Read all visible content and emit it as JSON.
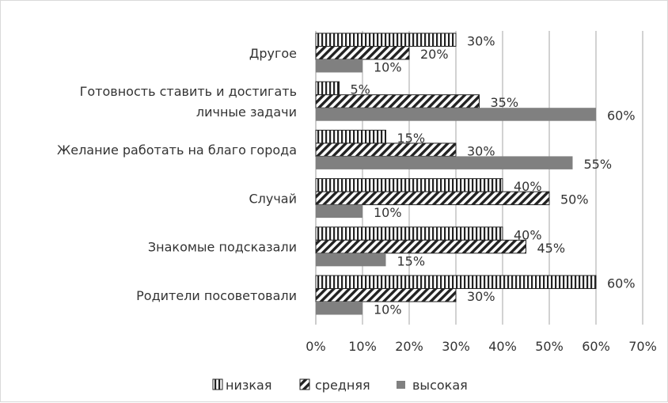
{
  "chart_data": {
    "type": "bar",
    "orientation": "horizontal",
    "categories": [
      [
        "Другое"
      ],
      [
        "Готовность ставить и достигать",
        "личные задачи"
      ],
      [
        "Желание работать на благо города"
      ],
      [
        "Случай"
      ],
      [
        "Знакомые подсказали"
      ],
      [
        "Родители посоветовали"
      ]
    ],
    "series": [
      {
        "name": "низкая",
        "values": [
          30,
          5,
          15,
          40,
          40,
          60
        ],
        "labels": [
          "30%",
          "5%",
          "15%",
          "40%",
          "40%",
          "60%"
        ],
        "pattern": "vertical-stripes"
      },
      {
        "name": "средняя",
        "values": [
          20,
          35,
          30,
          50,
          45,
          30
        ],
        "labels": [
          "20%",
          "35%",
          "30%",
          "50%",
          "45%",
          "30%"
        ],
        "pattern": "diagonal-stripes"
      },
      {
        "name": "высокая",
        "values": [
          10,
          60,
          55,
          10,
          15,
          10
        ],
        "labels": [
          "10%",
          "60%",
          "55%",
          "10%",
          "15%",
          "10%"
        ],
        "pattern": "solid",
        "color": "#808080"
      }
    ],
    "xlim": [
      0,
      70
    ],
    "xticks": [
      "0%",
      "10%",
      "20%",
      "30%",
      "40%",
      "50%",
      "60%",
      "70%"
    ],
    "grid": true,
    "legend": "bottom",
    "title": "",
    "xlabel": "",
    "ylabel": ""
  }
}
